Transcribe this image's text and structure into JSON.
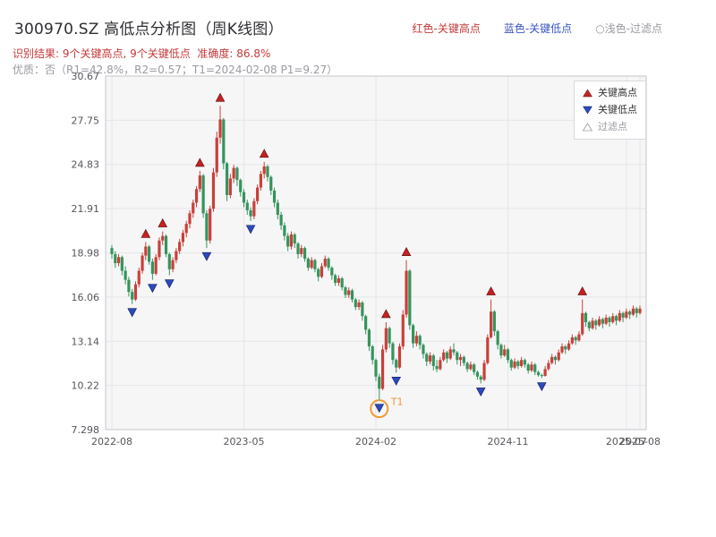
{
  "header": {
    "title": "300970.SZ 高低点分析图（周K线图）",
    "legend_high": "红色-关键高点",
    "legend_low": "蓝色-关键低点",
    "legend_filtered": "○浅色-过滤点",
    "result_line": "识别结果: 9个关键高点, 9个关键低点  准确度: 86.8%",
    "quality_line": "优质：否（R1=42.8%，R2=0.57；T1=2024-02-08 P1=9.27）"
  },
  "legend_box": {
    "high_label": "关键高点",
    "low_label": "关键低点",
    "filtered_label": "过滤点"
  },
  "chart_data": {
    "type": "candlestick",
    "title": "300970.SZ 高低点分析图（周K线图）",
    "interval": "weekly",
    "weeks": 157,
    "ylim": [
      7.298,
      30.67
    ],
    "grid": true,
    "y_ticks": [
      {
        "label": "7.298",
        "value": 7.298
      },
      {
        "label": "10.22",
        "value": 10.22
      },
      {
        "label": "13.14",
        "value": 13.14
      },
      {
        "label": "16.06",
        "value": 16.06
      },
      {
        "label": "18.98",
        "value": 18.98
      },
      {
        "label": "21.91",
        "value": 21.91
      },
      {
        "label": "24.83",
        "value": 24.83
      },
      {
        "label": "27.75",
        "value": 27.75
      },
      {
        "label": "30.67",
        "value": 30.67
      }
    ],
    "x_ticks": [
      {
        "label": "2022-08",
        "week": 0
      },
      {
        "label": "2023-05",
        "week": 39
      },
      {
        "label": "2024-02",
        "week": 78
      },
      {
        "label": "2024-11",
        "week": 117
      },
      {
        "label": "2025-07",
        "week": 152
      },
      {
        "label": "2025-08",
        "week": 156
      }
    ],
    "candles": [
      [
        19.3,
        19.5,
        18.6,
        18.9
      ],
      [
        18.9,
        19.1,
        18.0,
        18.3
      ],
      [
        18.3,
        18.9,
        18.1,
        18.7
      ],
      [
        18.7,
        18.8,
        17.5,
        17.8
      ],
      [
        17.8,
        18.1,
        16.9,
        17.2
      ],
      [
        17.2,
        17.4,
        16.1,
        16.4
      ],
      [
        16.4,
        16.6,
        15.6,
        15.9
      ],
      [
        15.9,
        17.1,
        15.8,
        16.9
      ],
      [
        16.9,
        18.0,
        16.7,
        17.8
      ],
      [
        17.8,
        19.0,
        17.6,
        18.8
      ],
      [
        18.8,
        19.7,
        18.5,
        19.4
      ],
      [
        19.4,
        19.5,
        18.2,
        18.4
      ],
      [
        18.4,
        18.6,
        17.2,
        17.6
      ],
      [
        17.6,
        18.9,
        17.5,
        18.7
      ],
      [
        18.7,
        20.0,
        18.5,
        19.8
      ],
      [
        19.8,
        20.4,
        19.5,
        20.1
      ],
      [
        20.1,
        20.2,
        18.7,
        18.9
      ],
      [
        18.9,
        19.0,
        17.5,
        17.9
      ],
      [
        17.9,
        18.7,
        17.7,
        18.5
      ],
      [
        18.5,
        19.3,
        18.3,
        19.1
      ],
      [
        19.1,
        19.9,
        18.9,
        19.7
      ],
      [
        19.7,
        20.5,
        19.4,
        20.3
      ],
      [
        20.3,
        21.1,
        20.0,
        20.9
      ],
      [
        20.9,
        21.8,
        20.6,
        21.6
      ],
      [
        21.6,
        22.5,
        21.3,
        22.3
      ],
      [
        22.3,
        23.4,
        22.0,
        23.2
      ],
      [
        23.2,
        24.4,
        23.0,
        24.1
      ],
      [
        24.1,
        24.2,
        21.3,
        21.6
      ],
      [
        21.6,
        21.8,
        19.3,
        19.8
      ],
      [
        19.8,
        22.1,
        19.6,
        21.9
      ],
      [
        21.9,
        24.6,
        21.7,
        24.3
      ],
      [
        24.3,
        27.0,
        24.0,
        26.6
      ],
      [
        26.6,
        28.7,
        26.2,
        27.8
      ],
      [
        27.8,
        27.9,
        24.5,
        24.9
      ],
      [
        24.9,
        25.0,
        22.4,
        22.8
      ],
      [
        22.8,
        24.2,
        22.6,
        23.9
      ],
      [
        23.9,
        24.8,
        23.6,
        24.6
      ],
      [
        24.6,
        24.7,
        23.4,
        23.8
      ],
      [
        23.8,
        23.9,
        22.7,
        23.0
      ],
      [
        23.0,
        23.2,
        22.0,
        22.3
      ],
      [
        22.3,
        22.5,
        21.5,
        21.8
      ],
      [
        21.8,
        22.0,
        21.1,
        21.4
      ],
      [
        21.4,
        22.6,
        21.2,
        22.4
      ],
      [
        22.4,
        23.5,
        22.2,
        23.3
      ],
      [
        23.3,
        24.4,
        23.1,
        24.2
      ],
      [
        24.2,
        25.0,
        23.9,
        24.7
      ],
      [
        24.7,
        24.8,
        23.7,
        24.0
      ],
      [
        24.0,
        24.1,
        22.8,
        23.1
      ],
      [
        23.1,
        23.3,
        22.0,
        22.3
      ],
      [
        22.3,
        22.5,
        21.2,
        21.5
      ],
      [
        21.5,
        21.7,
        20.5,
        20.8
      ],
      [
        20.8,
        21.0,
        19.8,
        20.1
      ],
      [
        20.1,
        20.3,
        19.1,
        19.4
      ],
      [
        19.4,
        20.4,
        19.2,
        20.2
      ],
      [
        20.2,
        20.3,
        19.3,
        19.6
      ],
      [
        19.6,
        19.7,
        18.6,
        18.9
      ],
      [
        18.9,
        19.5,
        18.7,
        19.3
      ],
      [
        19.3,
        19.4,
        18.4,
        18.6
      ],
      [
        18.6,
        18.7,
        17.8,
        18.0
      ],
      [
        18.0,
        18.7,
        17.9,
        18.5
      ],
      [
        18.5,
        18.6,
        17.7,
        17.9
      ],
      [
        17.9,
        18.0,
        17.1,
        17.4
      ],
      [
        17.4,
        18.3,
        17.3,
        18.1
      ],
      [
        18.1,
        18.8,
        18.0,
        18.6
      ],
      [
        18.6,
        18.7,
        17.8,
        18.0
      ],
      [
        18.0,
        18.1,
        17.2,
        17.5
      ],
      [
        17.5,
        17.6,
        16.8,
        17.0
      ],
      [
        17.0,
        17.5,
        16.8,
        17.3
      ],
      [
        17.3,
        17.4,
        16.5,
        16.7
      ],
      [
        16.7,
        16.8,
        16.0,
        16.2
      ],
      [
        16.2,
        16.7,
        16.0,
        16.5
      ],
      [
        16.5,
        16.6,
        15.7,
        15.9
      ],
      [
        15.9,
        16.0,
        15.2,
        15.4
      ],
      [
        15.4,
        15.9,
        15.2,
        15.7
      ],
      [
        15.7,
        15.8,
        14.5,
        14.8
      ],
      [
        14.8,
        14.9,
        13.6,
        13.9
      ],
      [
        13.9,
        14.0,
        12.5,
        12.8
      ],
      [
        12.8,
        12.9,
        11.6,
        11.9
      ],
      [
        11.9,
        12.0,
        10.5,
        10.8
      ],
      [
        10.8,
        11.0,
        9.27,
        10.0
      ],
      [
        10.0,
        12.9,
        9.9,
        12.6
      ],
      [
        12.6,
        14.4,
        12.4,
        14.0
      ],
      [
        14.0,
        14.1,
        12.7,
        13.0
      ],
      [
        13.0,
        13.1,
        11.6,
        11.9
      ],
      [
        11.9,
        12.0,
        11.07,
        11.4
      ],
      [
        11.4,
        13.0,
        11.3,
        12.8
      ],
      [
        12.8,
        15.2,
        12.6,
        14.9
      ],
      [
        14.9,
        18.5,
        14.7,
        17.8
      ],
      [
        17.8,
        17.9,
        13.9,
        14.2
      ],
      [
        14.2,
        14.3,
        12.7,
        13.0
      ],
      [
        13.0,
        13.8,
        12.8,
        13.5
      ],
      [
        13.5,
        13.6,
        12.6,
        12.9
      ],
      [
        12.9,
        13.0,
        12.0,
        12.3
      ],
      [
        12.3,
        12.4,
        11.5,
        11.8
      ],
      [
        11.8,
        12.4,
        11.6,
        12.2
      ],
      [
        12.2,
        12.3,
        11.2,
        11.5
      ],
      [
        11.5,
        11.9,
        11.1,
        11.3
      ],
      [
        11.3,
        12.1,
        11.2,
        11.9
      ],
      [
        11.9,
        12.6,
        11.8,
        12.4
      ],
      [
        12.4,
        12.5,
        11.7,
        12.0
      ],
      [
        12.0,
        12.8,
        11.9,
        12.6
      ],
      [
        12.6,
        13.0,
        12.2,
        12.4
      ],
      [
        12.4,
        12.5,
        11.6,
        11.9
      ],
      [
        11.9,
        12.3,
        11.5,
        12.1
      ],
      [
        12.1,
        12.2,
        11.5,
        11.7
      ],
      [
        11.7,
        11.8,
        11.1,
        11.3
      ],
      [
        11.3,
        11.8,
        11.2,
        11.6
      ],
      [
        11.6,
        11.7,
        10.9,
        11.1
      ],
      [
        11.1,
        11.2,
        10.6,
        10.8
      ],
      [
        10.8,
        10.9,
        10.35,
        10.6
      ],
      [
        10.6,
        11.9,
        10.5,
        11.7
      ],
      [
        11.7,
        13.6,
        11.6,
        13.4
      ],
      [
        13.4,
        15.9,
        13.3,
        15.1
      ],
      [
        15.1,
        15.2,
        13.5,
        13.8
      ],
      [
        13.8,
        13.9,
        12.6,
        12.9
      ],
      [
        12.9,
        13.0,
        12.0,
        12.2
      ],
      [
        12.2,
        12.9,
        12.1,
        12.6
      ],
      [
        12.6,
        12.7,
        11.7,
        11.9
      ],
      [
        11.9,
        12.0,
        11.2,
        11.4
      ],
      [
        11.4,
        12.0,
        11.3,
        11.8
      ],
      [
        11.8,
        11.9,
        11.3,
        11.5
      ],
      [
        11.5,
        12.1,
        11.4,
        11.9
      ],
      [
        11.9,
        12.0,
        11.4,
        11.6
      ],
      [
        11.6,
        11.7,
        11.0,
        11.2
      ],
      [
        11.2,
        11.8,
        11.1,
        11.6
      ],
      [
        11.6,
        11.7,
        10.9,
        11.1
      ],
      [
        11.1,
        11.2,
        10.8,
        10.9
      ],
      [
        10.9,
        11.0,
        10.7,
        10.85
      ],
      [
        10.85,
        11.5,
        10.8,
        11.3
      ],
      [
        11.3,
        11.9,
        11.2,
        11.7
      ],
      [
        11.7,
        12.3,
        11.6,
        12.1
      ],
      [
        12.1,
        12.2,
        11.6,
        11.9
      ],
      [
        11.9,
        12.6,
        11.8,
        12.4
      ],
      [
        12.4,
        13.0,
        12.3,
        12.8
      ],
      [
        12.8,
        12.9,
        12.3,
        12.6
      ],
      [
        12.6,
        13.2,
        12.5,
        13.0
      ],
      [
        13.0,
        13.6,
        12.9,
        13.4
      ],
      [
        13.4,
        13.5,
        12.9,
        13.2
      ],
      [
        13.2,
        13.8,
        13.1,
        13.6
      ],
      [
        13.6,
        15.9,
        13.5,
        15.0
      ],
      [
        15.0,
        15.1,
        14.1,
        14.4
      ],
      [
        14.4,
        14.5,
        13.8,
        14.0
      ],
      [
        14.0,
        14.7,
        13.9,
        14.5
      ],
      [
        14.5,
        14.6,
        13.9,
        14.2
      ],
      [
        14.2,
        14.8,
        14.1,
        14.6
      ],
      [
        14.6,
        14.7,
        14.0,
        14.3
      ],
      [
        14.3,
        14.9,
        14.2,
        14.7
      ],
      [
        14.7,
        14.8,
        14.1,
        14.4
      ],
      [
        14.4,
        15.0,
        14.3,
        14.8
      ],
      [
        14.8,
        14.9,
        14.2,
        14.5
      ],
      [
        14.5,
        15.2,
        14.4,
        15.0
      ],
      [
        15.0,
        15.1,
        14.4,
        14.7
      ],
      [
        14.7,
        15.3,
        14.6,
        15.1
      ],
      [
        15.1,
        15.2,
        14.6,
        14.9
      ],
      [
        14.9,
        15.5,
        14.8,
        15.3
      ],
      [
        15.3,
        15.4,
        14.7,
        15.0
      ],
      [
        15.0,
        15.5,
        14.9,
        15.3
      ]
    ],
    "key_highs": [
      {
        "week": 10,
        "price": 19.7
      },
      {
        "week": 15,
        "price": 20.4
      },
      {
        "week": 26,
        "price": 24.4
      },
      {
        "week": 32,
        "price": 28.7
      },
      {
        "week": 45,
        "price": 25.0
      },
      {
        "week": 81,
        "price": 14.4
      },
      {
        "week": 87,
        "price": 18.5
      },
      {
        "week": 112,
        "price": 15.9
      },
      {
        "week": 139,
        "price": 15.9
      }
    ],
    "key_lows": [
      {
        "week": 6,
        "price": 15.6
      },
      {
        "week": 12,
        "price": 17.2
      },
      {
        "week": 17,
        "price": 17.5
      },
      {
        "week": 28,
        "price": 19.3
      },
      {
        "week": 41,
        "price": 21.1
      },
      {
        "week": 79,
        "price": 9.27
      },
      {
        "week": 84,
        "price": 11.07
      },
      {
        "week": 109,
        "price": 10.35
      },
      {
        "week": 127,
        "price": 10.7
      }
    ],
    "t1": {
      "week": 79,
      "price": 9.27,
      "label": "T1",
      "date": "2024-02-08"
    },
    "colors": {
      "up": "#c9403a",
      "down": "#35945c",
      "high_marker": "#c42222",
      "low_marker": "#2c49c0",
      "t1": "#f09a32",
      "plot_bg": "#f6f6f7",
      "grid": "#e6e6ea",
      "border": "#c6c6cb",
      "axis_text": "#56565c"
    }
  }
}
